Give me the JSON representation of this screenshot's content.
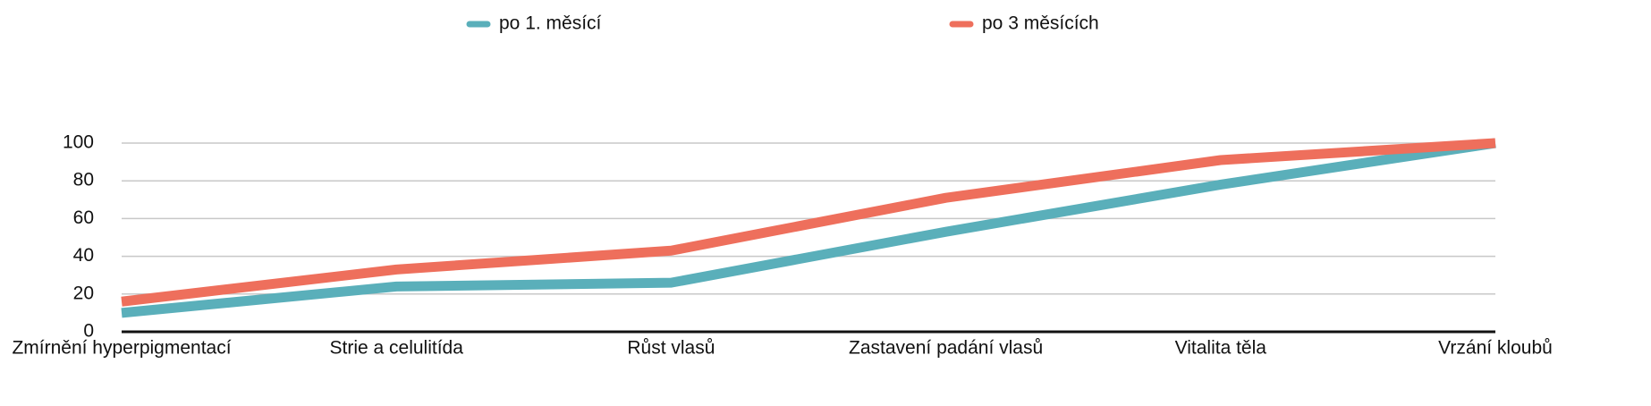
{
  "chart_data": {
    "type": "line",
    "categories": [
      "Zmírnění hyperpigmentací",
      "Strie a celulitída",
      "Růst vlasů",
      "Zastavení padání vlasů",
      "Vitalita těla",
      "Vrzání kloubů"
    ],
    "series": [
      {
        "name": "po 1. měsící",
        "color": "#5aafba",
        "values": [
          10,
          24,
          26,
          53,
          78,
          100
        ]
      },
      {
        "name": "po 3 měsících",
        "color": "#ee6f5c",
        "values": [
          16,
          33,
          43,
          71,
          91,
          100
        ]
      }
    ],
    "ylim": [
      0,
      100
    ],
    "yticks": [
      0,
      20,
      40,
      60,
      80,
      100
    ],
    "grid": true,
    "legend": "top"
  }
}
